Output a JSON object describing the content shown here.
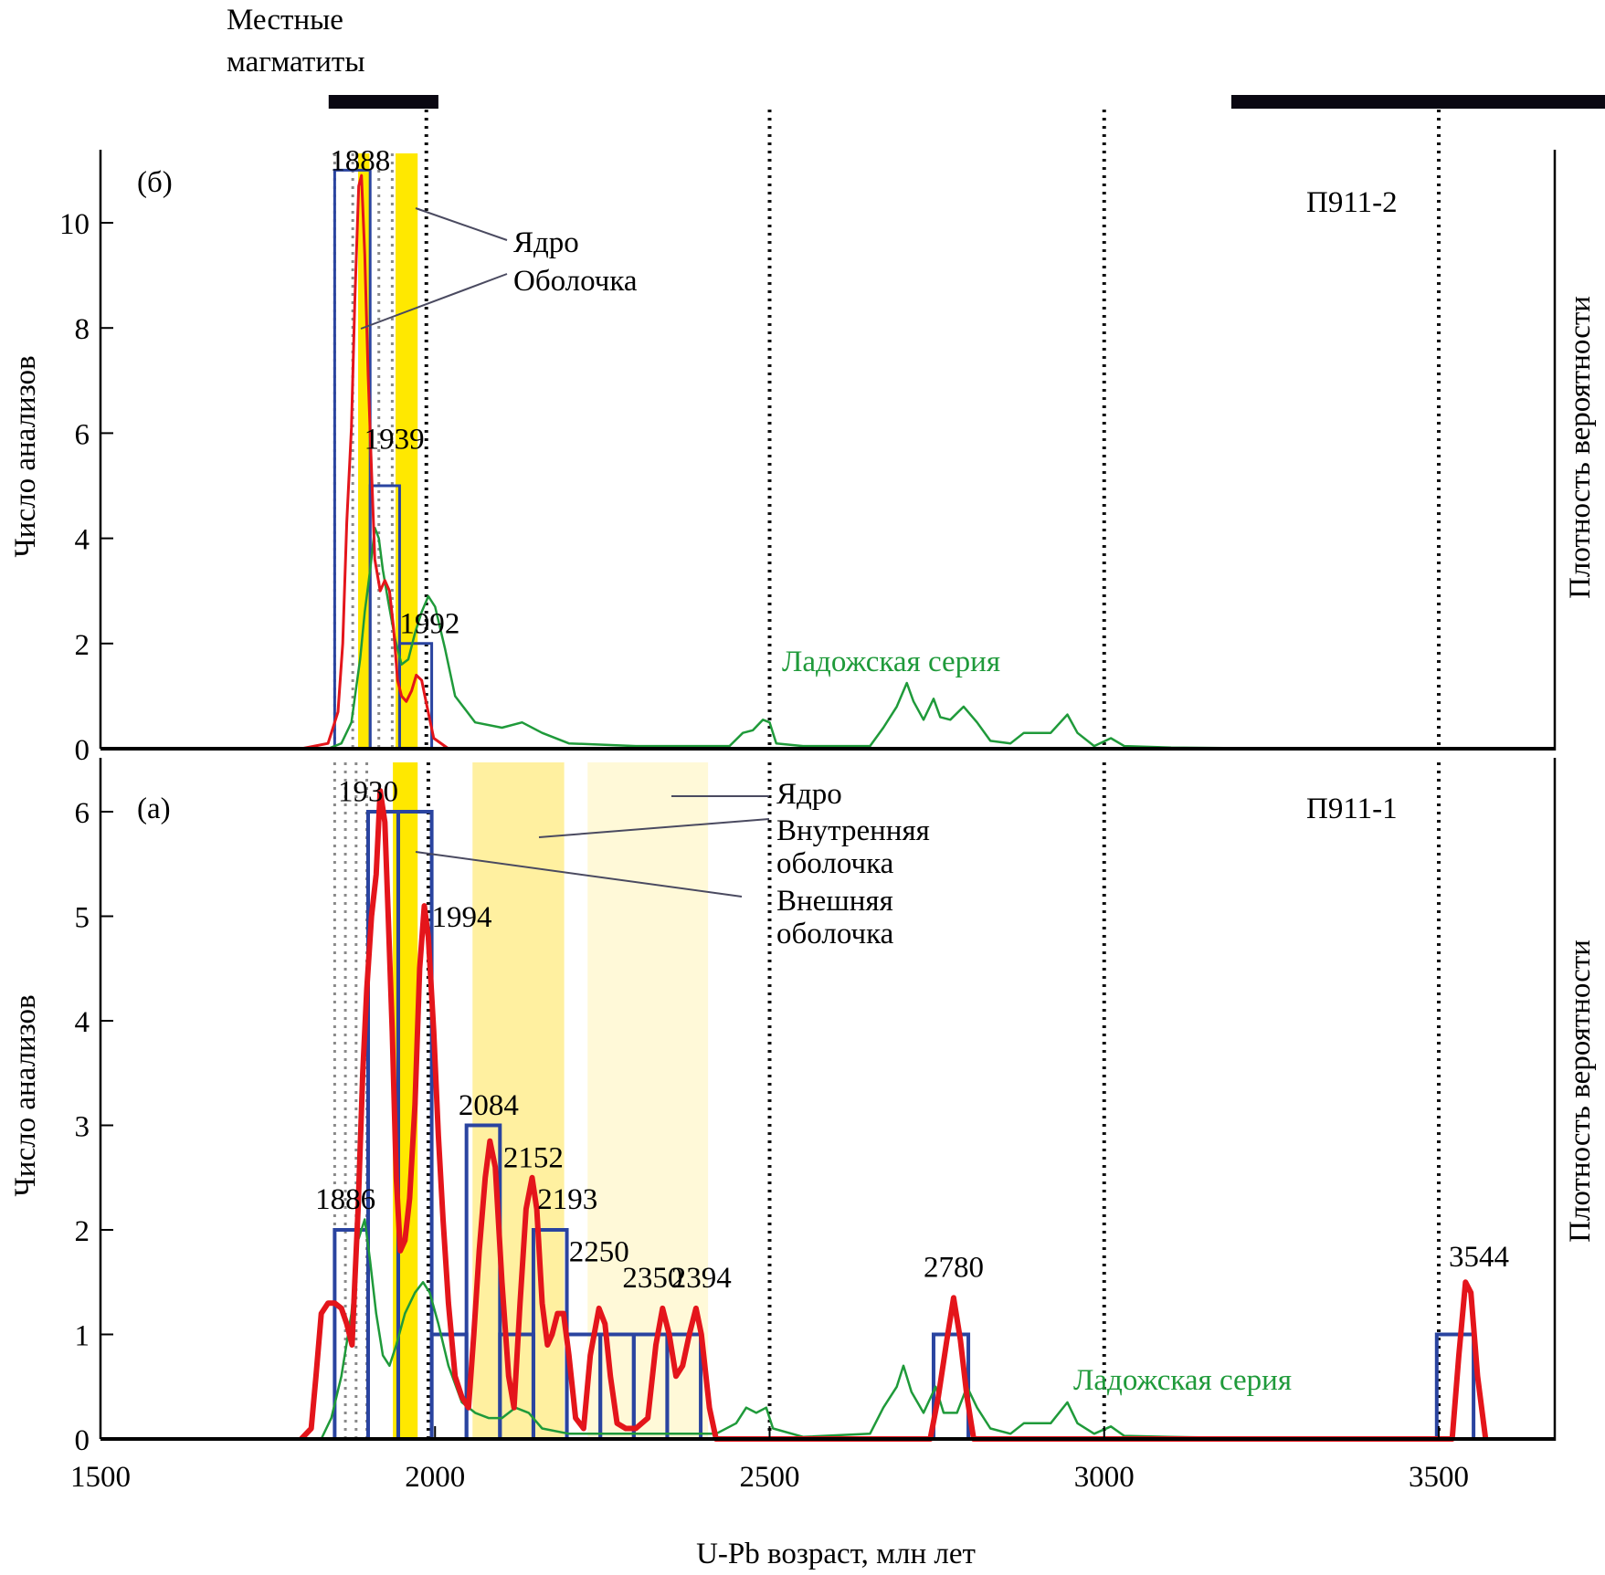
{
  "chart_data": [
    {
      "id": "panel-b",
      "type": "bar+line",
      "panel_label": "(б)",
      "sample": "П911-2",
      "ylabel": "Число анализов",
      "y2label": "Плотность вероятности",
      "ylim": [
        0,
        11.3
      ],
      "yticks": [
        0,
        2,
        4,
        6,
        8,
        10
      ],
      "xlim": [
        1500,
        3680
      ],
      "histogram_bins": [
        {
          "from": 1850,
          "to": 1903,
          "count": 11
        },
        {
          "from": 1903,
          "to": 1947,
          "count": 5
        },
        {
          "from": 1947,
          "to": 1995,
          "count": 2
        }
      ],
      "red_curve": [
        [
          1800,
          0
        ],
        [
          1840,
          0.1
        ],
        [
          1855,
          0.7
        ],
        [
          1862,
          2.0
        ],
        [
          1868,
          4.3
        ],
        [
          1875,
          6.1
        ],
        [
          1880,
          8.5
        ],
        [
          1886,
          10.7
        ],
        [
          1890,
          10.9
        ],
        [
          1895,
          9.4
        ],
        [
          1900,
          7.1
        ],
        [
          1905,
          5.3
        ],
        [
          1910,
          3.6
        ],
        [
          1918,
          3.0
        ],
        [
          1925,
          3.2
        ],
        [
          1932,
          3.0
        ],
        [
          1938,
          2.3
        ],
        [
          1944,
          1.3
        ],
        [
          1950,
          1.0
        ],
        [
          1957,
          0.9
        ],
        [
          1965,
          1.1
        ],
        [
          1972,
          1.4
        ],
        [
          1980,
          1.3
        ],
        [
          1988,
          0.8
        ],
        [
          1998,
          0.2
        ],
        [
          2020,
          0
        ]
      ],
      "green_curve": [
        [
          1700,
          0
        ],
        [
          1840,
          0
        ],
        [
          1860,
          0.1
        ],
        [
          1875,
          0.5
        ],
        [
          1888,
          1.7
        ],
        [
          1895,
          2.6
        ],
        [
          1903,
          3.4
        ],
        [
          1910,
          4.2
        ],
        [
          1916,
          4.0
        ],
        [
          1922,
          3.4
        ],
        [
          1930,
          2.8
        ],
        [
          1940,
          2.1
        ],
        [
          1950,
          1.6
        ],
        [
          1960,
          1.7
        ],
        [
          1970,
          2.2
        ],
        [
          1980,
          2.6
        ],
        [
          1990,
          2.9
        ],
        [
          2000,
          2.7
        ],
        [
          2015,
          1.9
        ],
        [
          2030,
          1.0
        ],
        [
          2060,
          0.5
        ],
        [
          2100,
          0.4
        ],
        [
          2130,
          0.5
        ],
        [
          2160,
          0.3
        ],
        [
          2200,
          0.1
        ],
        [
          2300,
          0.05
        ],
        [
          2440,
          0.05
        ],
        [
          2460,
          0.3
        ],
        [
          2475,
          0.35
        ],
        [
          2490,
          0.55
        ],
        [
          2500,
          0.5
        ],
        [
          2510,
          0.1
        ],
        [
          2550,
          0.05
        ],
        [
          2650,
          0.05
        ],
        [
          2670,
          0.4
        ],
        [
          2690,
          0.8
        ],
        [
          2705,
          1.25
        ],
        [
          2715,
          0.9
        ],
        [
          2730,
          0.55
        ],
        [
          2745,
          0.95
        ],
        [
          2755,
          0.6
        ],
        [
          2770,
          0.55
        ],
        [
          2790,
          0.8
        ],
        [
          2810,
          0.5
        ],
        [
          2830,
          0.15
        ],
        [
          2860,
          0.1
        ],
        [
          2880,
          0.3
        ],
        [
          2920,
          0.3
        ],
        [
          2945,
          0.65
        ],
        [
          2960,
          0.3
        ],
        [
          2985,
          0.05
        ],
        [
          3010,
          0.2
        ],
        [
          3030,
          0.05
        ],
        [
          3100,
          0.02
        ],
        [
          3290,
          0
        ]
      ],
      "reference_lines_dotted": [
        1850,
        1877,
        1916,
        1936,
        1987,
        2500,
        3000,
        3500
      ],
      "highlight_bands": [
        {
          "from": 1885,
          "to": 1902,
          "color": "#FFE800",
          "label": "Оболочка"
        },
        {
          "from": 1941,
          "to": 1974,
          "color": "#FFE800",
          "label": "Ядро"
        }
      ],
      "peak_labels": [
        {
          "text": "1888",
          "x": 1888,
          "y": 11
        },
        {
          "text": "1939",
          "x": 1939,
          "y": 5.7
        },
        {
          "text": "1992",
          "x": 1992,
          "y": 2.2
        }
      ],
      "annotations": [
        {
          "text": "Ядро",
          "role": "legend"
        },
        {
          "text": "Оболочка",
          "role": "legend"
        },
        {
          "text": "Ладожская серия",
          "color": "#1f9a3a"
        }
      ]
    },
    {
      "id": "panel-a",
      "type": "bar+line",
      "panel_label": "(а)",
      "sample": "П911-1",
      "ylabel": "Число анализов",
      "y2label": "Плотность вероятности",
      "ylim": [
        0,
        6.5
      ],
      "yticks": [
        0,
        1,
        2,
        3,
        4,
        5,
        6
      ],
      "xlim": [
        1500,
        3680
      ],
      "histogram_bins": [
        {
          "from": 1850,
          "to": 1900,
          "count": 2
        },
        {
          "from": 1900,
          "to": 1945,
          "count": 6
        },
        {
          "from": 1945,
          "to": 1995,
          "count": 6
        },
        {
          "from": 1995,
          "to": 2047,
          "count": 1
        },
        {
          "from": 2047,
          "to": 2097,
          "count": 3
        },
        {
          "from": 2097,
          "to": 2147,
          "count": 1
        },
        {
          "from": 2147,
          "to": 2197,
          "count": 2
        },
        {
          "from": 2197,
          "to": 2247,
          "count": 1
        },
        {
          "from": 2247,
          "to": 2297,
          "count": 1
        },
        {
          "from": 2297,
          "to": 2347,
          "count": 1
        },
        {
          "from": 2347,
          "to": 2397,
          "count": 1
        },
        {
          "from": 2745,
          "to": 2797,
          "count": 1
        },
        {
          "from": 3497,
          "to": 3552,
          "count": 1
        }
      ],
      "red_curve": [
        [
          1800,
          0
        ],
        [
          1815,
          0.1
        ],
        [
          1822,
          0.6
        ],
        [
          1830,
          1.2
        ],
        [
          1840,
          1.3
        ],
        [
          1850,
          1.3
        ],
        [
          1860,
          1.25
        ],
        [
          1868,
          1.1
        ],
        [
          1876,
          0.9
        ],
        [
          1880,
          1.5
        ],
        [
          1885,
          2.2
        ],
        [
          1892,
          3.5
        ],
        [
          1898,
          4.3
        ],
        [
          1905,
          5.0
        ],
        [
          1912,
          5.4
        ],
        [
          1918,
          6.2
        ],
        [
          1925,
          5.9
        ],
        [
          1930,
          5.0
        ],
        [
          1936,
          3.9
        ],
        [
          1942,
          2.5
        ],
        [
          1948,
          1.8
        ],
        [
          1955,
          1.9
        ],
        [
          1962,
          2.3
        ],
        [
          1970,
          3.2
        ],
        [
          1977,
          4.5
        ],
        [
          1984,
          5.1
        ],
        [
          1990,
          4.8
        ],
        [
          1998,
          3.9
        ],
        [
          2005,
          2.9
        ],
        [
          2012,
          2.1
        ],
        [
          2020,
          1.3
        ],
        [
          2030,
          0.6
        ],
        [
          2040,
          0.4
        ],
        [
          2050,
          0.3
        ],
        [
          2058,
          1.0
        ],
        [
          2066,
          1.8
        ],
        [
          2075,
          2.5
        ],
        [
          2082,
          2.85
        ],
        [
          2090,
          2.6
        ],
        [
          2100,
          1.5
        ],
        [
          2110,
          0.6
        ],
        [
          2118,
          0.3
        ],
        [
          2127,
          1.3
        ],
        [
          2136,
          2.2
        ],
        [
          2145,
          2.5
        ],
        [
          2152,
          2.2
        ],
        [
          2160,
          1.3
        ],
        [
          2168,
          0.9
        ],
        [
          2175,
          1.0
        ],
        [
          2183,
          1.2
        ],
        [
          2192,
          1.2
        ],
        [
          2200,
          0.8
        ],
        [
          2210,
          0.2
        ],
        [
          2222,
          0.1
        ],
        [
          2232,
          0.8
        ],
        [
          2245,
          1.25
        ],
        [
          2254,
          1.1
        ],
        [
          2262,
          0.6
        ],
        [
          2272,
          0.15
        ],
        [
          2285,
          0.1
        ],
        [
          2300,
          0.1
        ],
        [
          2318,
          0.2
        ],
        [
          2330,
          0.9
        ],
        [
          2340,
          1.25
        ],
        [
          2350,
          1.0
        ],
        [
          2360,
          0.6
        ],
        [
          2370,
          0.7
        ],
        [
          2380,
          1.0
        ],
        [
          2390,
          1.25
        ],
        [
          2398,
          1.0
        ],
        [
          2410,
          0.3
        ],
        [
          2420,
          0
        ],
        [
          2740,
          0
        ],
        [
          2752,
          0.4
        ],
        [
          2765,
          0.95
        ],
        [
          2775,
          1.35
        ],
        [
          2785,
          0.95
        ],
        [
          2795,
          0.4
        ],
        [
          2805,
          0
        ],
        [
          3520,
          0
        ],
        [
          3530,
          0.8
        ],
        [
          3540,
          1.5
        ],
        [
          3548,
          1.4
        ],
        [
          3558,
          0.6
        ],
        [
          3570,
          0
        ]
      ],
      "green_curve": [
        [
          1700,
          0
        ],
        [
          1830,
          0
        ],
        [
          1845,
          0.2
        ],
        [
          1860,
          0.6
        ],
        [
          1875,
          1.2
        ],
        [
          1885,
          1.9
        ],
        [
          1895,
          2.1
        ],
        [
          1903,
          1.7
        ],
        [
          1912,
          1.2
        ],
        [
          1922,
          0.8
        ],
        [
          1932,
          0.7
        ],
        [
          1942,
          0.9
        ],
        [
          1955,
          1.2
        ],
        [
          1970,
          1.4
        ],
        [
          1982,
          1.5
        ],
        [
          1992,
          1.4
        ],
        [
          2005,
          1.1
        ],
        [
          2020,
          0.7
        ],
        [
          2040,
          0.35
        ],
        [
          2060,
          0.25
        ],
        [
          2080,
          0.2
        ],
        [
          2100,
          0.2
        ],
        [
          2120,
          0.3
        ],
        [
          2140,
          0.25
        ],
        [
          2160,
          0.1
        ],
        [
          2200,
          0.05
        ],
        [
          2300,
          0.05
        ],
        [
          2420,
          0.05
        ],
        [
          2450,
          0.15
        ],
        [
          2465,
          0.3
        ],
        [
          2480,
          0.25
        ],
        [
          2495,
          0.3
        ],
        [
          2505,
          0.1
        ],
        [
          2550,
          0.02
        ],
        [
          2650,
          0.05
        ],
        [
          2670,
          0.3
        ],
        [
          2690,
          0.5
        ],
        [
          2700,
          0.7
        ],
        [
          2712,
          0.45
        ],
        [
          2730,
          0.25
        ],
        [
          2748,
          0.5
        ],
        [
          2760,
          0.25
        ],
        [
          2780,
          0.25
        ],
        [
          2795,
          0.5
        ],
        [
          2810,
          0.3
        ],
        [
          2830,
          0.1
        ],
        [
          2860,
          0.05
        ],
        [
          2880,
          0.15
        ],
        [
          2920,
          0.15
        ],
        [
          2945,
          0.35
        ],
        [
          2960,
          0.15
        ],
        [
          2985,
          0.05
        ],
        [
          3010,
          0.12
        ],
        [
          3030,
          0.03
        ],
        [
          3100,
          0.02
        ],
        [
          3290,
          0
        ]
      ],
      "reference_lines_dotted": [
        1850,
        1866,
        1882,
        1898,
        1990,
        2500,
        3000,
        3500
      ],
      "highlight_bands": [
        {
          "from": 1937,
          "to": 1974,
          "color": "#FFE800",
          "label": "Внешняя оболочка"
        },
        {
          "from": 2056,
          "to": 2193,
          "color": "#FFF0A0",
          "label": "Внутренняя оболочка"
        },
        {
          "from": 2228,
          "to": 2408,
          "color": "#FFF9D8",
          "label": "Ядро"
        }
      ],
      "peak_labels": [
        {
          "text": "1886",
          "x": 1866,
          "y": 2.2
        },
        {
          "text": "1930",
          "x": 1900,
          "y": 6.1
        },
        {
          "text": "1994",
          "x": 2040,
          "y": 4.9
        },
        {
          "text": "2084",
          "x": 2080,
          "y": 3.1
        },
        {
          "text": "2152",
          "x": 2147,
          "y": 2.6
        },
        {
          "text": "2193",
          "x": 2198,
          "y": 2.2
        },
        {
          "text": "2250",
          "x": 2245,
          "y": 1.7
        },
        {
          "text": "2350",
          "x": 2325,
          "y": 1.45
        },
        {
          "text": "2394",
          "x": 2398,
          "y": 1.45
        },
        {
          "text": "2780",
          "x": 2775,
          "y": 1.55
        },
        {
          "text": "3544",
          "x": 3560,
          "y": 1.65
        }
      ],
      "annotations": [
        {
          "text": "Ядро",
          "role": "legend"
        },
        {
          "text": "Внутренняя",
          "role": "legend"
        },
        {
          "text": "оболочка",
          "role": "legend"
        },
        {
          "text": "Внешняя",
          "role": "legend"
        },
        {
          "text": "оболочка",
          "role": "legend"
        },
        {
          "text": "Ладожская серия",
          "color": "#1f9a3a"
        }
      ]
    }
  ],
  "figure": {
    "xlabel": "U-Pb возраст, млн лет",
    "xticks": [
      1500,
      2000,
      2500,
      3000,
      3500
    ],
    "top_bars": [
      {
        "label_line1": "Местные",
        "label_line2": "магматиты",
        "from": 1841,
        "to": 2005
      },
      {
        "label_line1": "",
        "label_line2": "",
        "from": 3190,
        "to": 3750
      }
    ],
    "colors": {
      "histogram": "#2a44a0",
      "red_curve": "#e4151b",
      "green_curve": "#1f9a3a"
    }
  }
}
